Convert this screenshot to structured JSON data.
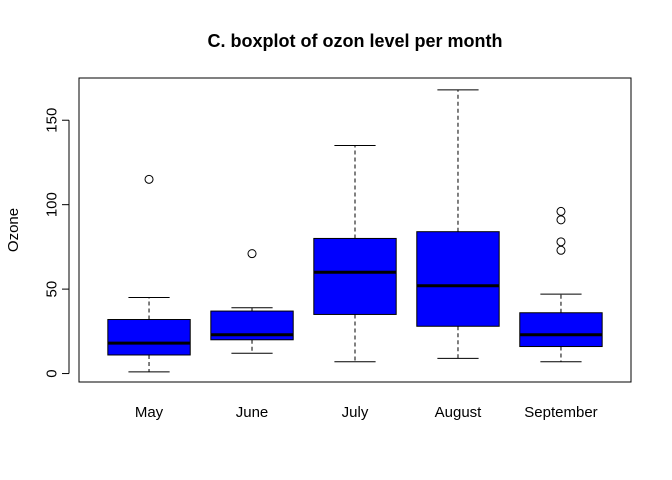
{
  "chart_data": {
    "type": "boxplot",
    "title": "C. boxplot of ozon level per month",
    "xlabel": "",
    "ylabel": "Ozone",
    "ylim": [
      -5,
      175
    ],
    "yticks": [
      0,
      50,
      100,
      150
    ],
    "ytick_labels": [
      "0",
      "50",
      "100",
      "150"
    ],
    "grid": false,
    "box_color": "#0000ff",
    "categories": [
      "May",
      "June",
      "July",
      "August",
      "September"
    ],
    "boxes": [
      {
        "min": 1,
        "q1": 11,
        "median": 18,
        "q3": 32,
        "max": 45,
        "outliers": [
          115
        ]
      },
      {
        "min": 12,
        "q1": 20,
        "median": 23,
        "q3": 37,
        "max": 39,
        "outliers": [
          71
        ]
      },
      {
        "min": 7,
        "q1": 35,
        "median": 60,
        "q3": 80,
        "max": 135,
        "outliers": []
      },
      {
        "min": 9,
        "q1": 28,
        "median": 52,
        "q3": 84,
        "max": 168,
        "outliers": []
      },
      {
        "min": 7,
        "q1": 16,
        "median": 23,
        "q3": 36,
        "max": 47,
        "outliers": [
          73,
          78,
          91,
          96
        ]
      }
    ]
  }
}
